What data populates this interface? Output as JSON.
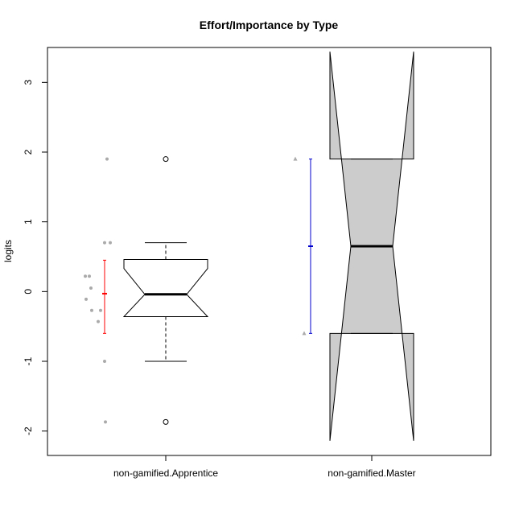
{
  "chart_data": {
    "type": "boxplot",
    "title": "Effort/Importance by Type",
    "xlabel": "",
    "ylabel": "logits",
    "ylim": [
      -2.35,
      3.5
    ],
    "yticks": [
      -2,
      -1,
      0,
      1,
      2,
      3
    ],
    "ytick_labels": [
      "-2",
      "-1",
      "0",
      "1",
      "2",
      "3"
    ],
    "categories": [
      "non-gamified.Apprentice",
      "non-gamified.Master"
    ],
    "groups": [
      {
        "category": "non-gamified.Apprentice",
        "box_fill": "#ffffff",
        "median": -0.04,
        "q1": -0.36,
        "q3": 0.46,
        "whisker_low": -1.0,
        "whisker_high": 0.7,
        "notch_low": -0.36,
        "notch_high": 0.33,
        "outliers": [
          1.9,
          -1.87
        ],
        "points": [
          1.9,
          0.7,
          0.7,
          0.22,
          0.22,
          0.05,
          -0.11,
          -0.27,
          -0.27,
          -0.43,
          -1.0,
          -1.87
        ],
        "point_color": "#aaaaaa",
        "mean": -0.03,
        "ci_low": -0.6,
        "ci_high": 0.45,
        "ci_color": "#ff0000"
      },
      {
        "category": "non-gamified.Master",
        "box_fill": "#cccccc",
        "median": 0.65,
        "q1": -0.6,
        "q3": 1.9,
        "whisker_low": -0.6,
        "whisker_high": 1.9,
        "notch_low": -2.14,
        "notch_high": 3.44,
        "outliers": [],
        "points": [
          1.9,
          -0.6
        ],
        "point_color": "#aaaaaa",
        "mean": 0.65,
        "ci_low": -0.6,
        "ci_high": 1.9,
        "ci_color": "#0000cc"
      }
    ],
    "grid": false,
    "legend": "none"
  }
}
